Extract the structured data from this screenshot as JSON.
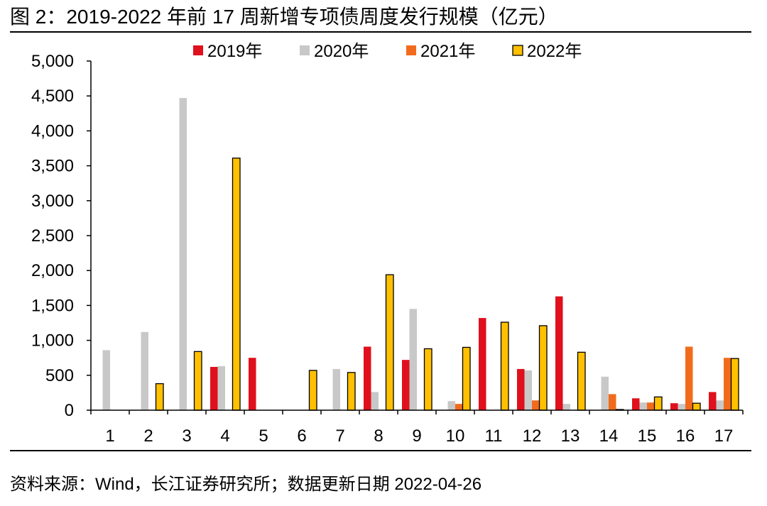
{
  "title": "图 2：2019-2022 年前 17 周新增专项债周度发行规模（亿元）",
  "source": "资料来源：Wind，长江证券研究所；数据更新日期 2022-04-26",
  "chart_data": {
    "type": "bar",
    "categories": [
      "1",
      "2",
      "3",
      "4",
      "5",
      "6",
      "7",
      "8",
      "9",
      "10",
      "11",
      "12",
      "13",
      "14",
      "15",
      "16",
      "17"
    ],
    "ylim": [
      0,
      5000
    ],
    "yticks": [
      "0",
      "500",
      "1,000",
      "1,500",
      "2,000",
      "2,500",
      "3,000",
      "3,500",
      "4,000",
      "4,500",
      "5,000"
    ],
    "ytick_values": [
      0,
      500,
      1000,
      1500,
      2000,
      2500,
      3000,
      3500,
      4000,
      4500,
      5000
    ],
    "legend_position": "top",
    "grid": false,
    "series": [
      {
        "name": "2019年",
        "color": "#e0101c",
        "values": [
          0,
          0,
          0,
          620,
          750,
          0,
          0,
          910,
          720,
          0,
          1320,
          590,
          1630,
          0,
          170,
          100,
          260
        ]
      },
      {
        "name": "2020年",
        "color": "#c8c8c8",
        "values": [
          860,
          1120,
          4470,
          630,
          0,
          0,
          590,
          260,
          1450,
          130,
          0,
          570,
          90,
          480,
          110,
          90,
          140
        ]
      },
      {
        "name": "2021年",
        "color": "#f26b1d",
        "values": [
          0,
          0,
          0,
          0,
          0,
          0,
          0,
          0,
          0,
          90,
          0,
          140,
          0,
          230,
          110,
          910,
          750
        ]
      },
      {
        "name": "2022年",
        "color": "#ffc000",
        "values": [
          0,
          380,
          840,
          3610,
          0,
          570,
          540,
          1940,
          880,
          900,
          1260,
          1210,
          830,
          10,
          190,
          100,
          740
        ]
      }
    ]
  }
}
